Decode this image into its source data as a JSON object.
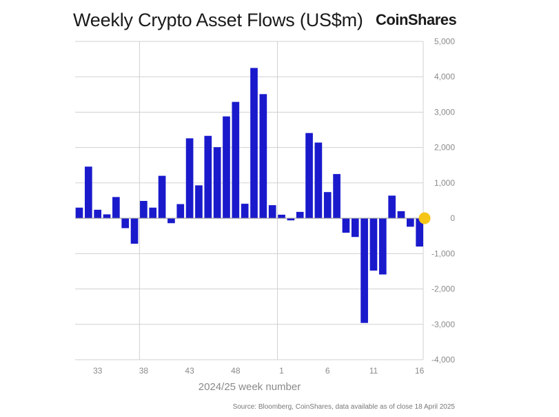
{
  "header": {
    "title": "Weekly Crypto Asset Flows (US$m)",
    "brand": "CoinShares"
  },
  "footer": {
    "source": "Source: Bloomberg, CoinShares, data available as of close 18 April 2025"
  },
  "colors": {
    "bar": "#1a1acc",
    "marker": "#f5c518",
    "grid": "#d0d0d0"
  },
  "chart_data": {
    "type": "bar",
    "xlabel": "2024/25 week number",
    "ylabel": "",
    "ylim": [
      -4000,
      5000
    ],
    "yticks": [
      5000,
      4000,
      3000,
      2000,
      1000,
      0,
      -1000,
      -2000,
      -3000,
      -4000
    ],
    "ytick_labels": [
      "5,000",
      "4,000",
      "3,000",
      "2,000",
      "1,000",
      "0",
      "-1,000",
      "-2,000",
      "-3,000",
      "-4,000"
    ],
    "xtick_labels": [
      "33",
      "38",
      "43",
      "48",
      "1",
      "6",
      "11",
      "16"
    ],
    "xtick_weeks": [
      "33",
      "38",
      "43",
      "48",
      "1",
      "6",
      "11",
      "16"
    ],
    "vertical_gridlines_at": [
      "38",
      "1"
    ],
    "axis_position": "right",
    "grid": true,
    "categories": [
      "31",
      "32",
      "33",
      "34",
      "35",
      "36",
      "37",
      "38",
      "39",
      "40",
      "41",
      "42",
      "43",
      "44",
      "45",
      "46",
      "47",
      "48",
      "49",
      "50",
      "51",
      "52",
      "1",
      "2",
      "3",
      "4",
      "5",
      "6",
      "7",
      "8",
      "9",
      "10",
      "11",
      "12",
      "13",
      "14",
      "15",
      "16"
    ],
    "values": [
      300,
      1460,
      240,
      110,
      600,
      -280,
      -720,
      490,
      300,
      1200,
      -140,
      400,
      2260,
      930,
      2330,
      2010,
      2880,
      3290,
      410,
      4250,
      3510,
      370,
      100,
      -60,
      180,
      2410,
      2140,
      740,
      1250,
      -410,
      -530,
      -2960,
      -1480,
      -1590,
      640,
      200,
      -240,
      -800
    ],
    "highlight": {
      "category": "16",
      "value": 0
    }
  }
}
